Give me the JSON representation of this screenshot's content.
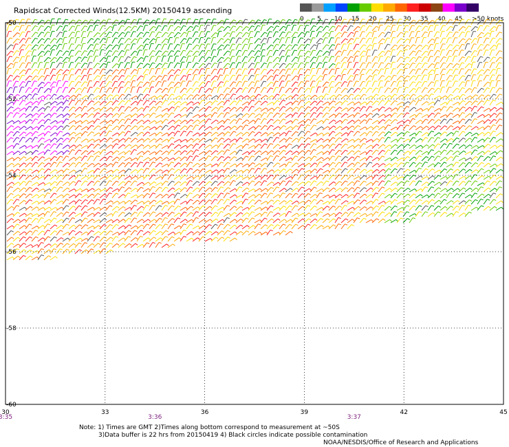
{
  "title": "Rapidscat Corrected Winds(12.5KM) 20150419 ascending",
  "legend": {
    "labels": [
      "0",
      "5",
      "10",
      "15",
      "20",
      "25",
      "30",
      "35",
      "40",
      "45",
      ">50 knots"
    ],
    "colors": [
      "#555555",
      "#9a9a9a",
      "#00a0ff",
      "#0044ff",
      "#00a000",
      "#66cc00",
      "#ffdd00",
      "#ffaa00",
      "#ff6600",
      "#ff2020",
      "#cc0000",
      "#8b4513",
      "#ff00ff",
      "#7a00cc",
      "#330066"
    ]
  },
  "map": {
    "lon_ticks": [
      "30",
      "33",
      "36",
      "39",
      "42",
      "45"
    ],
    "lat_ticks": [
      "-50",
      "-52",
      "-54",
      "-56",
      "-58",
      "-60"
    ],
    "time_labels": [
      {
        "text": "3:35",
        "lon": 30
      },
      {
        "text": "3:36",
        "lon": 34.5
      },
      {
        "text": "3:37",
        "lon": 40.5
      }
    ],
    "swath_edge_lat": -56.4
  },
  "notes": {
    "line1": "Note: 1) Times are GMT 2)Times along bottom correspond to measurement at ~50S",
    "line2": "3)Data buffer is 22 hrs from 20150419 4) Black circles indicate possible contamination",
    "credit": "NOAA/NESDIS/Office of Research and Applications"
  }
}
